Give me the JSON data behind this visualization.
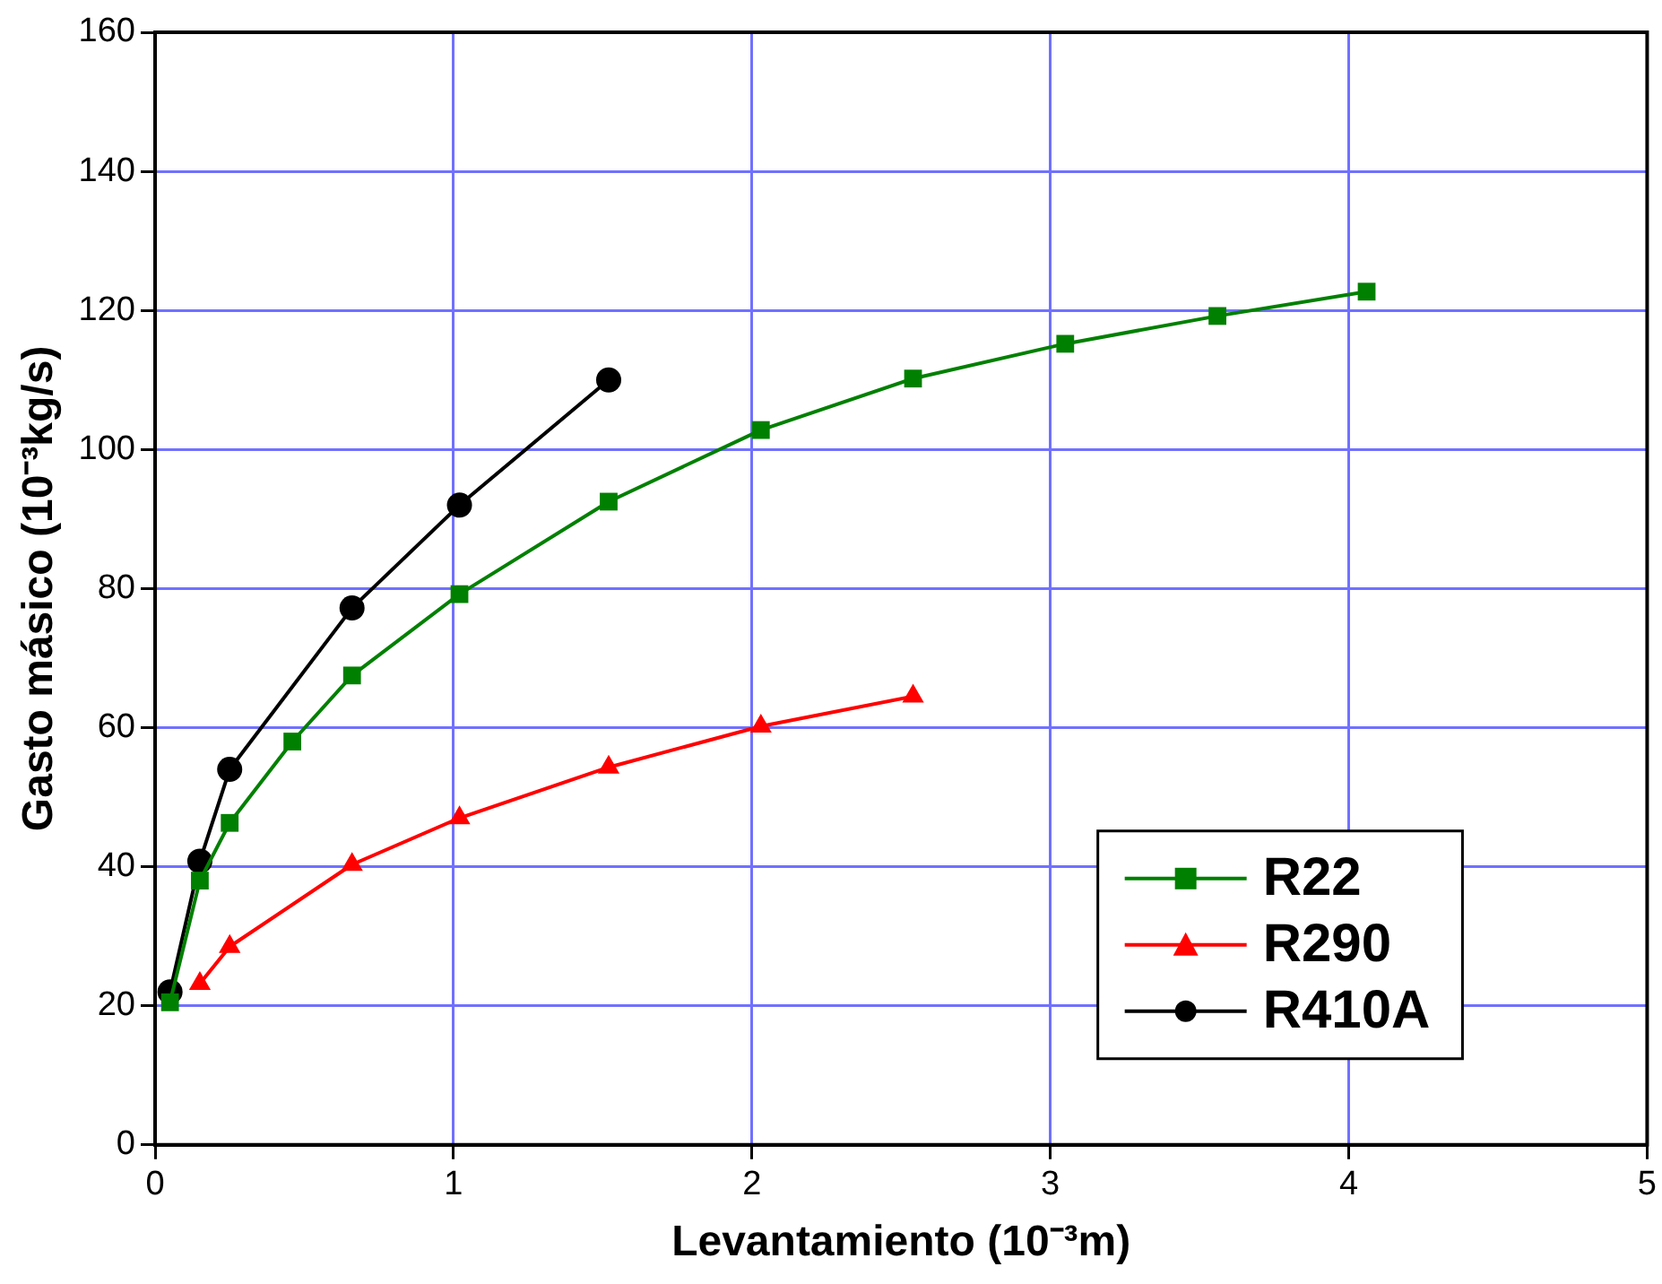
{
  "chart_data": {
    "type": "line",
    "xlabel": "Levantamiento (10⁻³m)",
    "ylabel": "Gasto másico (10⁻³kg/s)",
    "xlim": [
      0,
      5
    ],
    "xticks": [
      0,
      1,
      2,
      3,
      4,
      5
    ],
    "ylim": [
      0,
      160
    ],
    "yticks": [
      0,
      20,
      40,
      60,
      80,
      100,
      120,
      140,
      160
    ],
    "grid": true,
    "legend": "bottom right",
    "line_style": "solid",
    "series": [
      {
        "name": "R22",
        "color": "#008000",
        "marker": "square",
        "x": [
          0.05,
          0.15,
          0.25,
          0.46,
          0.66,
          1.02,
          1.52,
          2.03,
          2.54,
          3.05,
          3.56,
          4.06
        ],
        "values": [
          20.5,
          38,
          46.3,
          58,
          67.5,
          79.2,
          92.5,
          102.8,
          110.2,
          115.2,
          119.2,
          122.7
        ]
      },
      {
        "name": "R290",
        "color": "#ff0000",
        "marker": "triangle",
        "x": [
          0.15,
          0.25,
          0.66,
          1.02,
          1.52,
          2.03,
          2.54
        ],
        "values": [
          23.2,
          28.5,
          40.3,
          47,
          54.3,
          60.2,
          64.5
        ]
      },
      {
        "name": "R410A",
        "color": "#000000",
        "marker": "circle",
        "x": [
          0.05,
          0.15,
          0.25,
          0.66,
          1.02,
          1.52
        ],
        "values": [
          22,
          40.8,
          54,
          77.2,
          92,
          110
        ]
      }
    ]
  }
}
